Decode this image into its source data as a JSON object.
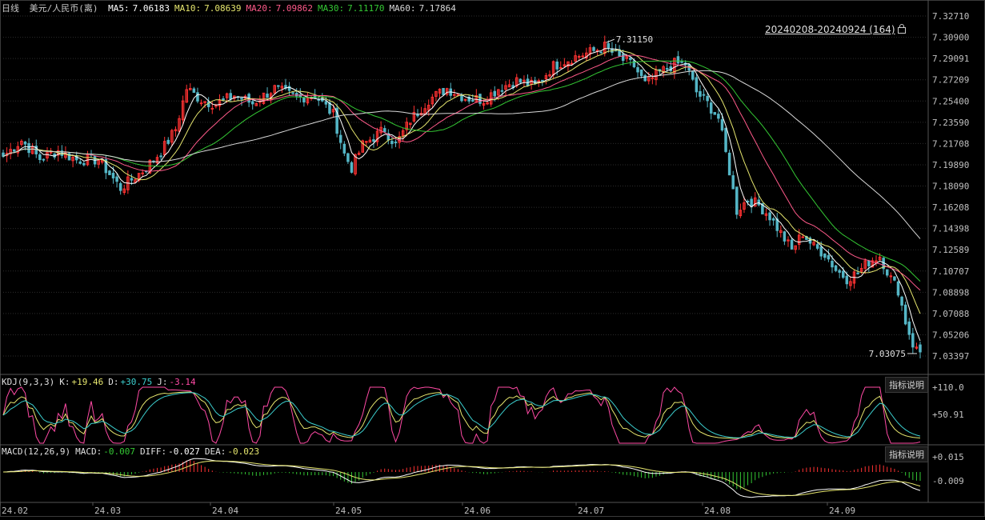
{
  "header": {
    "period": "日线",
    "symbol": "美元/人民币(离)",
    "ma": [
      {
        "label": "MA5:",
        "value": "7.06183",
        "color": "#ffffff"
      },
      {
        "label": "MA10:",
        "value": "7.08639",
        "color": "#e6e66e"
      },
      {
        "label": "MA20:",
        "value": "7.09862",
        "color": "#ff5a8a"
      },
      {
        "label": "MA30:",
        "value": "7.11170",
        "color": "#34c834"
      },
      {
        "label": "MA60:",
        "value": "7.17864",
        "color": "#d8d8d8"
      }
    ]
  },
  "range_label": "20240208-20240924 (164)",
  "price_panel": {
    "y_ticks": [
      "7.32710",
      "7.30900",
      "7.29091",
      "7.27209",
      "7.25400",
      "7.23590",
      "7.21708",
      "7.19890",
      "7.18090",
      "7.16208",
      "7.14398",
      "7.12589",
      "7.10707",
      "7.08898",
      "7.07088",
      "7.05206",
      "7.03397"
    ],
    "high_annotation": "7.31150",
    "low_annotation": "7.03075"
  },
  "kdj": {
    "title": "KDJ(9,3,3)",
    "k_label": "K:",
    "k_value": "+19.46",
    "d_label": "D:",
    "d_value": "+30.75",
    "j_label": "J:",
    "j_value": "-3.14",
    "y_ticks": [
      "+110.0",
      "+50.91"
    ],
    "button": "指标说明"
  },
  "macd": {
    "title": "MACD(12,26,9)",
    "macd_label": "MACD:",
    "macd_value": "-0.007",
    "diff_label": "DIFF:",
    "diff_value": "-0.027",
    "dea_label": "DEA:",
    "dea_value": "-0.023",
    "y_ticks": [
      "+0.015",
      "-0.009"
    ],
    "button": "指标说明"
  },
  "x_labels": [
    "24.02",
    "24.03",
    "24.04",
    "24.05",
    "24.06",
    "24.07",
    "24.08",
    "24.09"
  ],
  "colors": {
    "up": "#ff3232",
    "down": "#54b6c6",
    "grid": "#2c2c2c",
    "axis_text": "#c0c0c0"
  },
  "chart_data": {
    "type": "candlestick",
    "title": "",
    "date_range": "20240208-20240924",
    "bar_count": 164,
    "x_labels": [
      "24.02",
      "24.03",
      "24.04",
      "24.05",
      "24.06",
      "24.07",
      "24.08",
      "24.09"
    ],
    "ylim": [
      7.03,
      7.33
    ],
    "high": 7.3115,
    "low": 7.03075,
    "ma_latest": {
      "MA5": 7.06183,
      "MA10": 7.08639,
      "MA20": 7.09862,
      "MA30": 7.1117,
      "MA60": 7.17864
    },
    "close_anchors": [
      [
        0,
        7.208
      ],
      [
        5,
        7.222
      ],
      [
        10,
        7.206
      ],
      [
        15,
        7.213
      ],
      [
        20,
        7.205
      ],
      [
        26,
        7.205
      ],
      [
        32,
        7.18
      ],
      [
        38,
        7.195
      ],
      [
        43,
        7.212
      ],
      [
        47,
        7.232
      ],
      [
        50,
        7.268
      ],
      [
        54,
        7.258
      ],
      [
        58,
        7.254
      ],
      [
        63,
        7.262
      ],
      [
        68,
        7.255
      ],
      [
        74,
        7.268
      ],
      [
        80,
        7.26
      ],
      [
        85,
        7.262
      ],
      [
        90,
        7.245
      ],
      [
        93,
        7.21
      ],
      [
        95,
        7.198
      ],
      [
        98,
        7.218
      ],
      [
        101,
        7.225
      ],
      [
        104,
        7.232
      ],
      [
        107,
        7.218
      ],
      [
        111,
        7.24
      ],
      [
        116,
        7.258
      ],
      [
        121,
        7.268
      ],
      [
        126,
        7.26
      ],
      [
        131,
        7.258
      ],
      [
        135,
        7.268
      ],
      [
        140,
        7.275
      ],
      [
        145,
        7.27
      ],
      [
        150,
        7.288
      ],
      [
        155,
        7.295
      ],
      [
        160,
        7.3
      ],
      [
        164,
        7.305
      ],
      [
        168,
        7.295
      ],
      [
        172,
        7.288
      ],
      [
        175,
        7.272
      ],
      [
        179,
        7.282
      ],
      [
        183,
        7.29
      ],
      [
        186,
        7.29
      ],
      [
        189,
        7.265
      ],
      [
        192,
        7.255
      ],
      [
        195,
        7.242
      ],
      [
        198,
        7.195
      ],
      [
        200,
        7.16
      ],
      [
        203,
        7.17
      ],
      [
        206,
        7.165
      ],
      [
        209,
        7.155
      ],
      [
        212,
        7.14
      ],
      [
        215,
        7.125
      ],
      [
        218,
        7.14
      ],
      [
        221,
        7.128
      ],
      [
        224,
        7.122
      ],
      [
        227,
        7.108
      ],
      [
        230,
        7.1
      ],
      [
        233,
        7.105
      ],
      [
        236,
        7.115
      ],
      [
        239,
        7.12
      ],
      [
        242,
        7.1
      ],
      [
        244,
        7.09
      ],
      [
        246,
        7.062
      ],
      [
        248,
        7.042
      ],
      [
        250,
        7.032
      ]
    ],
    "kdj": {
      "K": 19.46,
      "D": 30.75,
      "J": -3.14,
      "y_ticks": [
        110.0,
        50.91
      ]
    },
    "macd": {
      "MACD": -0.007,
      "DIFF": -0.027,
      "DEA": -0.023,
      "y_ticks": [
        0.015,
        -0.009
      ]
    }
  }
}
